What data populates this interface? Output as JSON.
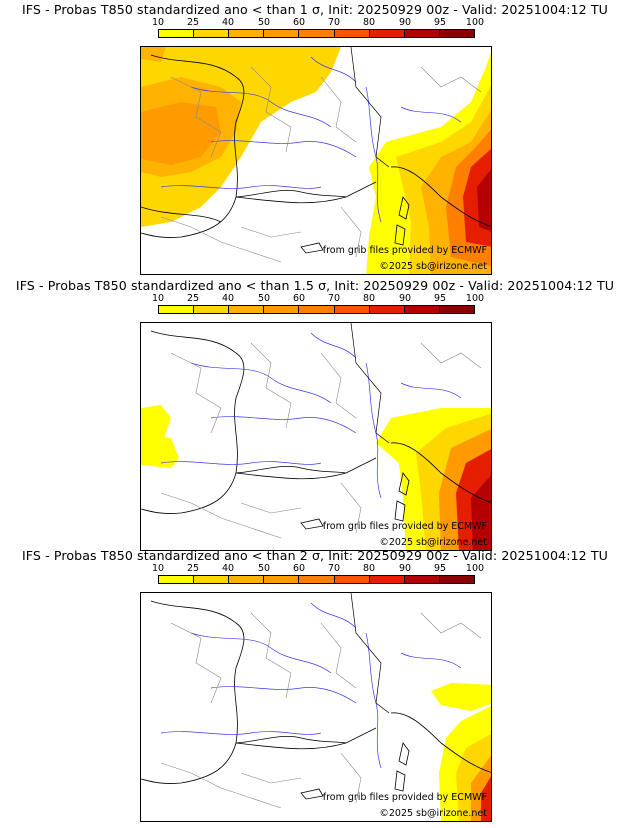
{
  "colorbar": {
    "ticks": [
      "10",
      "25",
      "40",
      "50",
      "60",
      "70",
      "80",
      "90",
      "95",
      "100"
    ],
    "colors": [
      "#ffff00",
      "#ffd700",
      "#ffb300",
      "#ff9a00",
      "#ff7f00",
      "#ff5500",
      "#e61e00",
      "#b40000",
      "#8b0000"
    ]
  },
  "panels": [
    {
      "title": "IFS - Probas T850  standardized ano < than 1 σ, Init: 20250929 00z - Valid: 20251004:12 TU",
      "credit_source": "from grib files provided by ECMWF",
      "credit_copyright": "©2025 sb@irizone.net"
    },
    {
      "title": "IFS - Probas T850  standardized ano < than 1.5 σ, Init: 20250929 00z - Valid: 20251004:12 TU",
      "credit_source": "from grib files provided by ECMWF",
      "credit_copyright": "©2025 sb@irizone.net"
    },
    {
      "title": "IFS - Probas T850  standardized ano < than 2 σ, Init: 20250929 00z - Valid: 20251004:12 TU",
      "credit_source": "from grib files provided by ECMWF",
      "credit_copyright": "©2025 sb@irizone.net"
    }
  ]
}
